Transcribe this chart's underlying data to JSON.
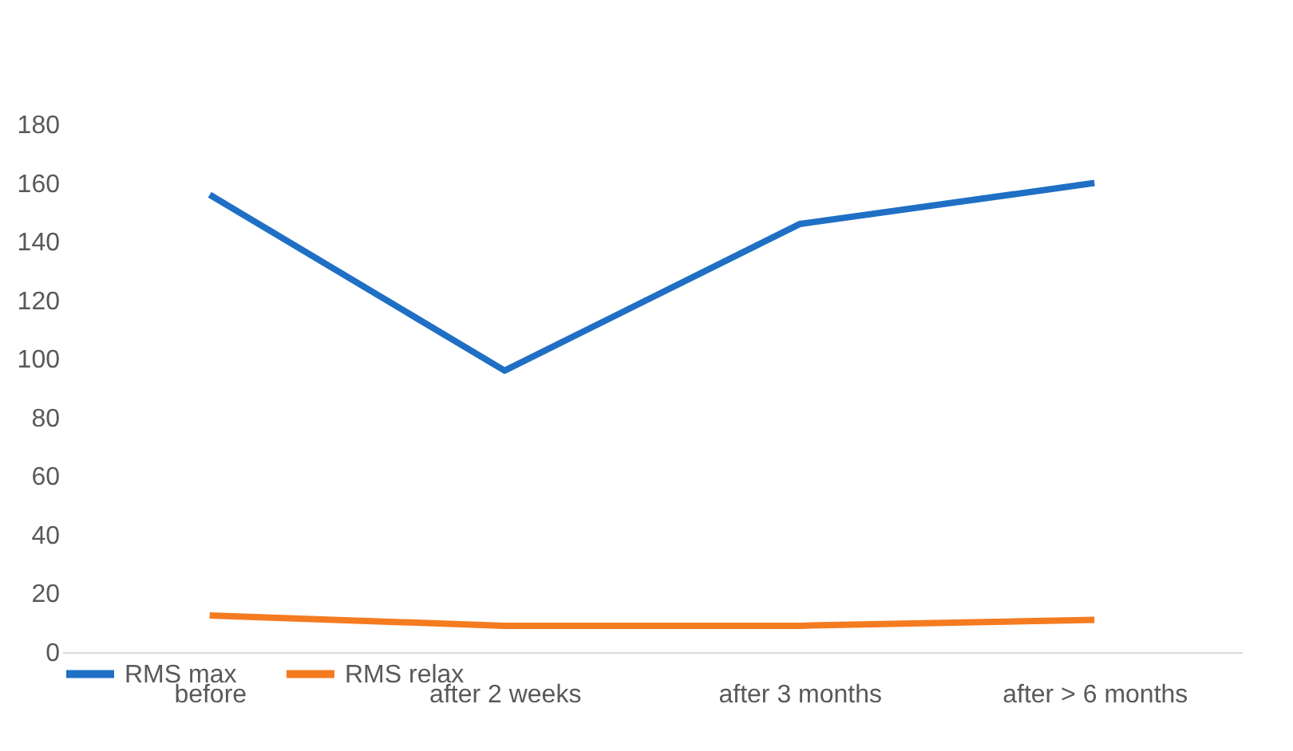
{
  "chart_data": {
    "type": "line",
    "categories": [
      "before",
      "after 2 weeks",
      "after 3 months",
      "after > 6 months"
    ],
    "series": [
      {
        "name": "RMS max",
        "color": "#1f6fc5",
        "values": [
          156,
          96,
          146,
          160
        ]
      },
      {
        "name": "RMS relax",
        "color": "#f47b20",
        "values": [
          12.5,
          9,
          9,
          11
        ]
      }
    ],
    "ylim": [
      0,
      180
    ],
    "yticks": [
      0,
      20,
      40,
      60,
      80,
      100,
      120,
      140,
      160,
      180
    ],
    "grid": false,
    "legend": "bottom",
    "marker": "none",
    "line_style": "solid"
  }
}
